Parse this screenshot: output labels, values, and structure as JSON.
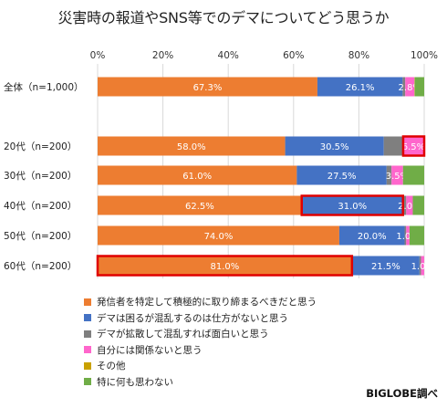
{
  "chart_data": {
    "type": "bar",
    "stacked": "horizontal-100%",
    "title": "災害時の報道やSNS等でのデマについてどう思うか",
    "categories": [
      "全体（n=1,000）",
      "20代（n=200）",
      "30代（n=200）",
      "40代（n=200）",
      "50代（n=200）",
      "60代（n=200）"
    ],
    "x_ticks": [
      "0%",
      "20%",
      "40%",
      "60%",
      "80%",
      "100%"
    ],
    "xlim": [
      0,
      100
    ],
    "grid": true,
    "legend_position": "bottom-left",
    "series": [
      {
        "name": "発信者を特定して積極的に取り締まるべきだと思う",
        "color": "#ED7D31",
        "values": [
          67.3,
          58.0,
          61.0,
          62.5,
          74.0,
          81.0
        ],
        "labels": [
          "67.3%",
          "58.0%",
          "61.0%",
          "62.5%",
          "74.0%",
          "81.0%"
        ]
      },
      {
        "name": "デマは困るが混乱するのは仕方がないと思う",
        "color": "#4472C4",
        "values": [
          26.1,
          30.5,
          27.5,
          31.0,
          20.0,
          21.5
        ],
        "labels": [
          "26.1%",
          "30.5%",
          "27.5%",
          "31.0%",
          "20.0%",
          "21.5%"
        ]
      },
      {
        "name": "デマが拡散して混乱すれば面白いと思う",
        "color": "#7F7F7F",
        "values": [
          0.8,
          6.0,
          1.5,
          1.0,
          0.5,
          0.5
        ],
        "labels": [
          "",
          "",
          "",
          "",
          "",
          ""
        ]
      },
      {
        "name": "自分には関係ないと思う",
        "color": "#FF66CC",
        "values": [
          2.8,
          6.5,
          3.5,
          2.0,
          1.0,
          1.0
        ],
        "labels": [
          "2.8%",
          "6.5%",
          "3.5%",
          "2.0%",
          "1.0%",
          "1.0%"
        ]
      },
      {
        "name": "その他",
        "color": "#C9A100",
        "values": [
          0.1,
          0.0,
          0.0,
          0.0,
          0.0,
          0.0
        ],
        "labels": [
          "",
          "",
          "",
          "",
          "",
          ""
        ]
      },
      {
        "name": "特に何も思わない",
        "color": "#70AD47",
        "values": [
          2.9,
          -1.0,
          6.5,
          3.5,
          4.5,
          -4.0
        ],
        "labels": [
          "",
          "",
          "",
          "",
          "",
          ""
        ]
      }
    ],
    "highlights": [
      {
        "category": "20代（n=200）",
        "series": "自分には関係ないと思う"
      },
      {
        "category": "40代（n=200）",
        "series": "デマは困るが混乱するのは仕方がないと思う"
      },
      {
        "category": "60代（n=200）",
        "series": "発信者を特定して積極的に取り締まるべきだと思う"
      }
    ],
    "highlight_color": "#E00000"
  },
  "footer": {
    "credit": "BIGLOBE調べ"
  }
}
